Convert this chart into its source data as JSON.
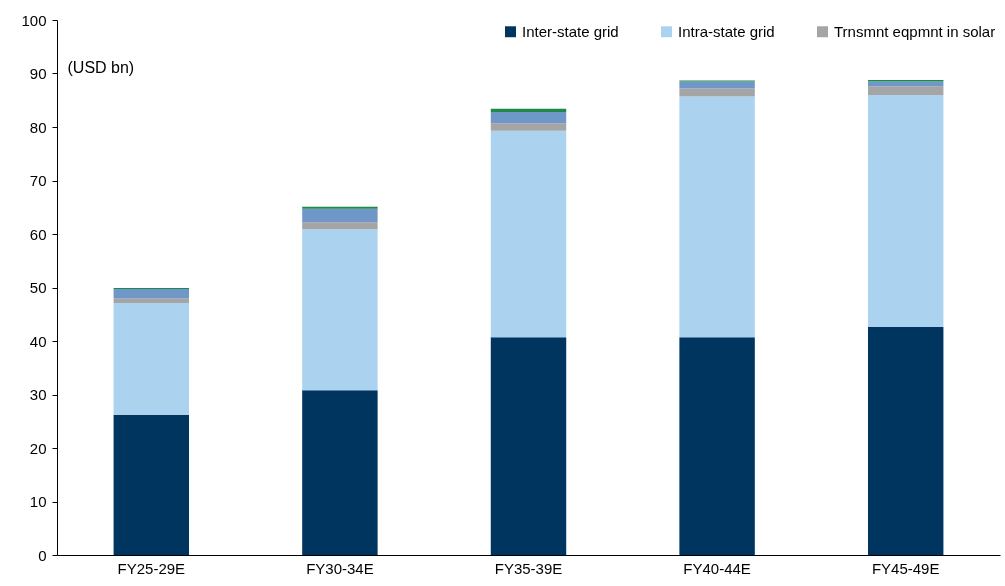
{
  "chart_data": {
    "type": "bar",
    "stacked": true,
    "ylabel": "(USD bn)",
    "categories": [
      "FY25-29E",
      "FY30-34E",
      "FY35-39E",
      "FY40-44E",
      "FY45-49E"
    ],
    "series": [
      {
        "name": "Inter-state grid",
        "color": "#003560",
        "values": [
          26.2,
          30.8,
          40.7,
          40.7,
          42.6
        ]
      },
      {
        "name": "Intra-state grid",
        "color": "#abd3ef",
        "values": [
          20.9,
          30.1,
          38.6,
          45.0,
          43.4
        ]
      },
      {
        "name": "Trnsmnt eqpmnt in solar",
        "color": "#a5a5a5",
        "values": [
          0.9,
          1.3,
          1.4,
          1.5,
          1.6
        ]
      },
      {
        "color": "#6f98c8",
        "values": [
          1.7,
          2.5,
          2.1,
          1.3,
          0.9
        ]
      },
      {
        "color": "#1e8a4a",
        "values": [
          0.2,
          0.4,
          0.6,
          0.2,
          0.3
        ]
      }
    ],
    "ylim": [
      0,
      100
    ],
    "yticks": [
      0,
      10,
      20,
      30,
      40,
      50,
      60,
      70,
      80,
      90,
      100
    ],
    "grid": false,
    "legend": "top right"
  }
}
